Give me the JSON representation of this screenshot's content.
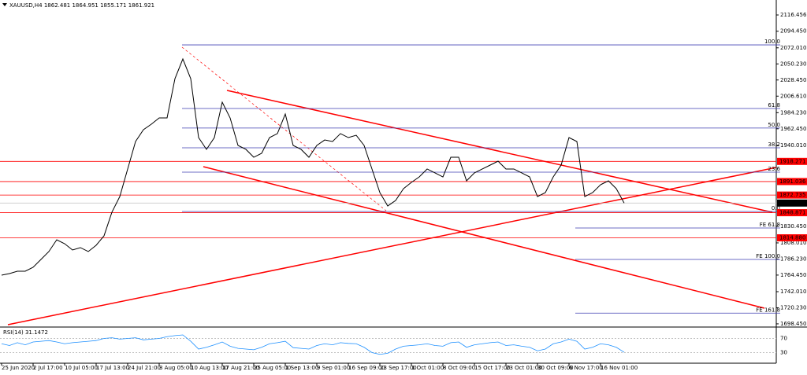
{
  "chart_data": {
    "type": "line",
    "title": "XAUUSD,H4 1862.481 1864.951 1855.171 1861.921",
    "categories": [
      "25 Jun 2020",
      null,
      null,
      null,
      "2 Jul 17:00",
      null,
      null,
      null,
      "10 Jul 05:00",
      null,
      null,
      null,
      "17 Jul 13:00",
      null,
      null,
      null,
      "24 Jul 21:00",
      null,
      null,
      null,
      "3 Aug 05:00",
      null,
      null,
      null,
      "10 Aug 13:00",
      null,
      null,
      null,
      "17 Aug 21:00",
      null,
      null,
      null,
      "25 Aug 05:00",
      null,
      null,
      null,
      "1 Sep 13:00",
      null,
      null,
      null,
      "9 Sep 01:00",
      null,
      null,
      null,
      "16 Sep 09:00",
      null,
      null,
      null,
      "23 Sep 17:00",
      null,
      null,
      null,
      "1 Oct 01:00",
      null,
      null,
      null,
      "8 Oct 09:00",
      null,
      null,
      null,
      "15 Oct 17:00",
      null,
      null,
      null,
      "23 Oct 01:00",
      null,
      null,
      null,
      "30 Oct 09:00",
      null,
      null,
      null,
      "6 Nov 17:00",
      null,
      null,
      null,
      "16 Nov 01:00",
      null,
      null,
      null
    ],
    "series": [
      {
        "name": "XAUUSD",
        "color": "#000000",
        "values": [
          1764.3,
          1766.5,
          1769.7,
          1769.7,
          1775.0,
          1785.6,
          1796.3,
          1812.2,
          1806.9,
          1798.4,
          1801.6,
          1796.3,
          1804.8,
          1817.6,
          1849.5,
          1870.7,
          1908.0,
          1945.2,
          1961.2,
          1968.6,
          1977.1,
          1977.1,
          2030.3,
          2056.9,
          2030.3,
          1950.5,
          1934.6,
          1950.5,
          1998.4,
          1977.1,
          1939.9,
          1934.6,
          1923.9,
          1929.3,
          1950.5,
          1955.9,
          1982.4,
          1939.9,
          1934.6,
          1923.9,
          1939.9,
          1947.3,
          1945.2,
          1955.9,
          1950.5,
          1953.7,
          1939.9,
          1908.0,
          1876.1,
          1858.0,
          1865.4,
          1881.4,
          1889.9,
          1897.3,
          1908.0,
          1902.7,
          1897.3,
          1923.9,
          1923.9,
          1892.0,
          1902.7,
          1908.0,
          1913.3,
          1918.6,
          1908.0,
          1908.0,
          1902.7,
          1897.3,
          1870.7,
          1876.1,
          1897.3,
          1913.3,
          1950.5,
          1945.2,
          1870.7,
          1876.1,
          1886.7,
          1892.0,
          1881.4,
          1861.9
        ]
      }
    ],
    "ylim": [
      1695.2,
      2136.7
    ],
    "yticks": [
      2116.456,
      {
        "value": 2094.45,
        "label": "2094.450"
      },
      {
        "value": 2072.01,
        "label": "2072.010"
      },
      {
        "value": 2050.23,
        "label": "2050.230"
      },
      {
        "value": 2028.45,
        "label": "2028.450"
      },
      {
        "value": 2006.61,
        "label": "2006.610"
      },
      {
        "value": 1984.23,
        "label": "1984.230"
      },
      {
        "value": 1962.45,
        "label": "1962.450"
      },
      {
        "value": 1940.01,
        "label": "1940.010"
      },
      {
        "value": 1830.45,
        "label": "1830.450"
      },
      {
        "value": 1808.01,
        "label": "1808.010"
      },
      {
        "value": 1786.23,
        "label": "1786.230"
      },
      {
        "value": 1764.45,
        "label": "1764.450"
      },
      {
        "value": 1742.01,
        "label": "1742.010"
      },
      {
        "value": 1720.23,
        "label": "1720.230"
      },
      {
        "value": 1698.45,
        "label": "1698.450"
      }
    ],
    "levels": [
      1918.271,
      1891.036,
      1872.735,
      1848.871,
      {
        "value": 1814.88,
        "label": "1814.880"
      }
    ],
    "level_color": "#ff0000",
    "current_price": 1861.921,
    "fib_levels": [
      {
        "value": 2076.0,
        "label": "100.0"
      },
      {
        "value": 1989.9,
        "label": "61.8"
      },
      {
        "value": 1963.4,
        "label": "50.0"
      },
      {
        "value": 1936.7,
        "label": "38.2"
      },
      {
        "value": 1903.7,
        "label": "23.6"
      },
      {
        "value": 1850.5,
        "label": "0.0"
      }
    ],
    "fe_levels": [
      {
        "value": 1828.2,
        "label": "FE 61.8"
      },
      {
        "value": 1785.6,
        "label": "FE 100.0"
      },
      {
        "value": 1713.0,
        "label": "FE 161.8"
      }
    ],
    "fib_color": "#3b3bb0",
    "rsi": {
      "title": "RSI(14) 31.1472",
      "color": "#1e90ff",
      "ylim": [
        0,
        100
      ],
      "yticks": [
        70,
        30
      ],
      "values": [
        55,
        50,
        58,
        52,
        60,
        62,
        64,
        60,
        55,
        58,
        60,
        62,
        64,
        70,
        72,
        68,
        70,
        72,
        66,
        68,
        70,
        75,
        78,
        80,
        62,
        40,
        45,
        52,
        60,
        48,
        42,
        40,
        38,
        45,
        55,
        58,
        62,
        44,
        42,
        40,
        50,
        55,
        52,
        58,
        56,
        55,
        45,
        30,
        25,
        28,
        40,
        48,
        50,
        52,
        55,
        50,
        48,
        58,
        60,
        45,
        52,
        55,
        58,
        60,
        50,
        52,
        48,
        45,
        35,
        40,
        55,
        60,
        68,
        62,
        40,
        45,
        55,
        52,
        45,
        31
      ]
    }
  }
}
